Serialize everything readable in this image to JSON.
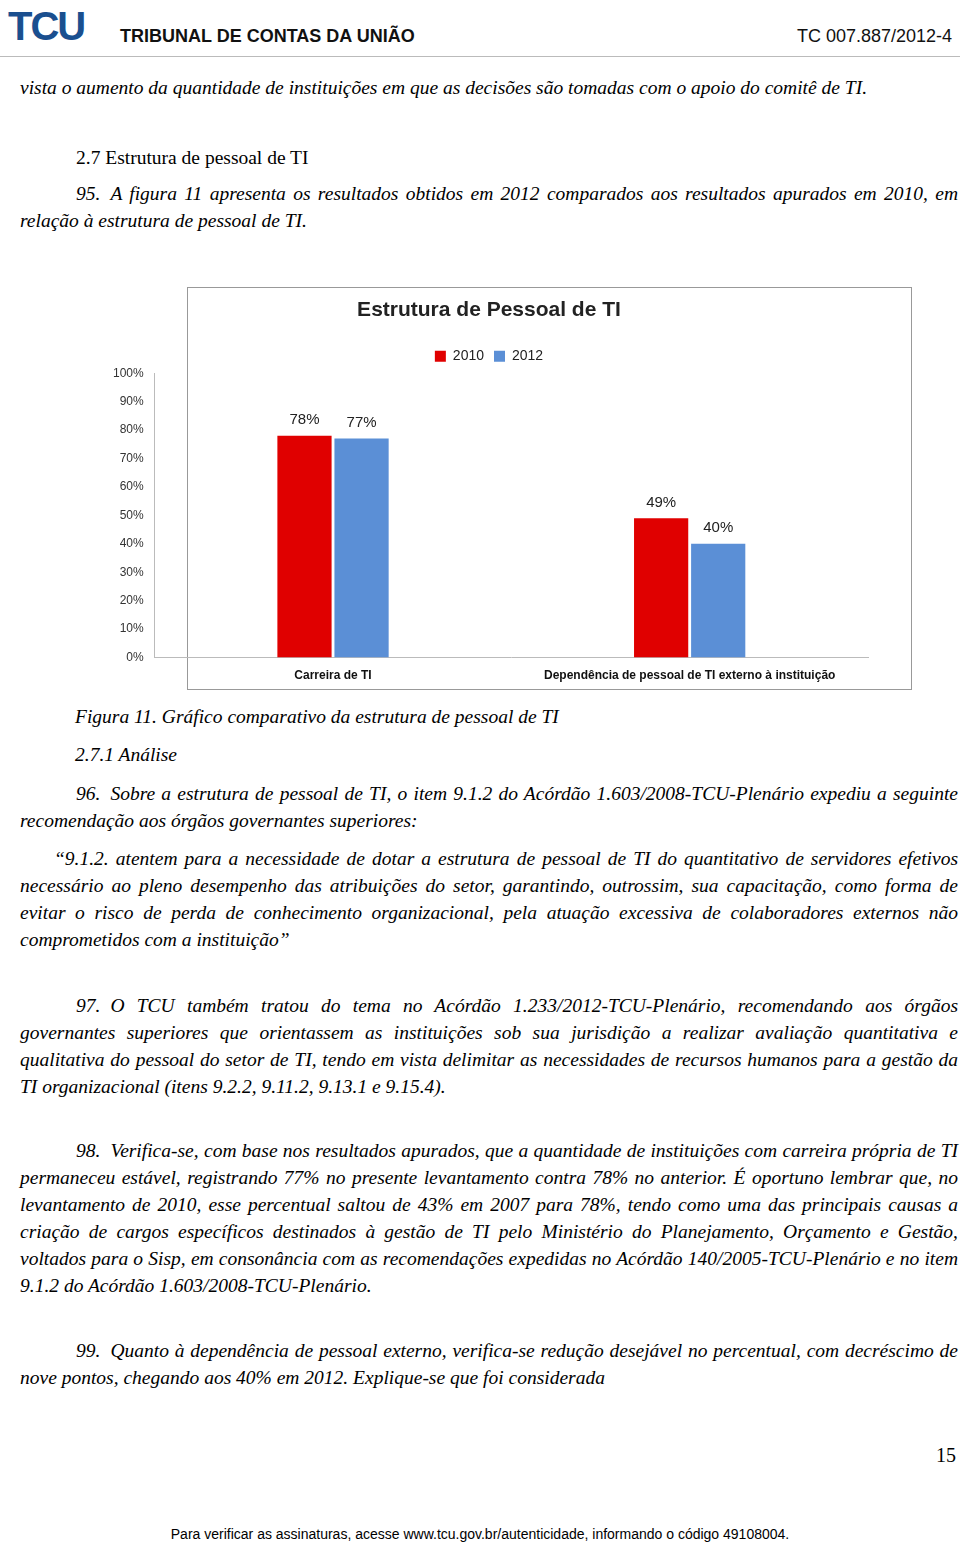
{
  "header": {
    "logo": "TCU",
    "org": "TRIBUNAL DE CONTAS DA UNIÃO",
    "process": "TC 007.887/2012-4"
  },
  "intro": "vista o aumento da quantidade de instituições em que as decisões são tomadas com o apoio do comitê de TI.",
  "section": "2.7 Estrutura de pessoal de TI",
  "p95": {
    "number": "95.",
    "text": "A figura 11 apresenta os resultados obtidos em 2012 comparados aos resultados apurados em 2010, em relação à estrutura de pessoal de TI."
  },
  "chart_data": {
    "type": "bar",
    "title": "Estrutura de Pessoal de TI",
    "categories": [
      "Carreira de TI",
      "Dependência de pessoal de TI externo à instituição"
    ],
    "series": [
      {
        "name": "2010",
        "color": "#e00000",
        "values": [
          78,
          49
        ],
        "value_labels": [
          "78%",
          "49%"
        ]
      },
      {
        "name": "2012",
        "color": "#5b8fd6",
        "values": [
          77,
          40
        ],
        "value_labels": [
          "77%",
          "40%"
        ]
      }
    ],
    "ylim": [
      0,
      100
    ],
    "yticks": [
      {
        "value": 0,
        "label": "0%"
      },
      {
        "value": 10,
        "label": "10%"
      },
      {
        "value": 20,
        "label": "20%"
      },
      {
        "value": 30,
        "label": "30%"
      },
      {
        "value": 40,
        "label": "40%"
      },
      {
        "value": 50,
        "label": "50%"
      },
      {
        "value": 60,
        "label": "60%"
      },
      {
        "value": 70,
        "label": "70%"
      },
      {
        "value": 80,
        "label": "80%"
      },
      {
        "value": 90,
        "label": "90%"
      },
      {
        "value": 100,
        "label": "100%"
      }
    ],
    "grid": false,
    "legend": "top",
    "data_labels": true
  },
  "caption": "Figura 11. Gráfico comparativo da estrutura de pessoal de TI",
  "subsection": "2.7.1 Análise",
  "p96": {
    "number": "96.",
    "text": "Sobre a estrutura de pessoal de TI, o item 9.1.2 do Acórdão 1.603/2008-TCU-Plenário expediu a seguinte recomendação aos órgãos governantes superiores:"
  },
  "quote": "“9.1.2. atentem para a necessidade de dotar a estrutura de pessoal de TI do quantitativo de servidores efetivos necessário ao pleno desempenho das atribuições do setor, garantindo, outrossim, sua capacitação, como forma de evitar o risco de perda de conhecimento organizacional, pela atuação excessiva de colaboradores externos não comprometidos com a instituição”",
  "p97": {
    "number": "97.",
    "text": "O TCU também tratou do tema no Acórdão 1.233/2012-TCU-Plenário, recomendando aos órgãos governantes superiores que orientassem as instituições sob sua jurisdição a realizar avaliação quantitativa e qualitativa do pessoal do setor de TI, tendo em vista delimitar as necessidades de recursos humanos para a gestão da TI organizacional (itens 9.2.2, 9.11.2, 9.13.1 e 9.15.4)."
  },
  "p98": {
    "number": "98.",
    "text": "Verifica-se, com base nos resultados apurados, que a quantidade de instituições com carreira própria de TI permaneceu estável, registrando 77% no presente levantamento contra 78% no anterior. É oportuno lembrar que, no levantamento de 2010, esse percentual saltou de 43% em 2007 para 78%, tendo como uma das principais causas a criação de cargos específicos destinados à gestão de TI pelo Ministério do Planejamento, Orçamento e Gestão, voltados para o Sisp, em consonância com as recomendações expedidas no Acórdão 140/2005-TCU-Plenário e no item 9.1.2 do Acórdão 1.603/2008-TCU-Plenário."
  },
  "p99": {
    "number": "99.",
    "text": "Quanto à dependência de pessoal externo, verifica-se redução desejável no percentual, com decréscimo de nove pontos, chegando aos 40% em 2012. Explique-se que foi considerada"
  },
  "page_number": "15",
  "footer": "Para verificar as assinaturas, acesse www.tcu.gov.br/autenticidade, informando o código 49108004."
}
